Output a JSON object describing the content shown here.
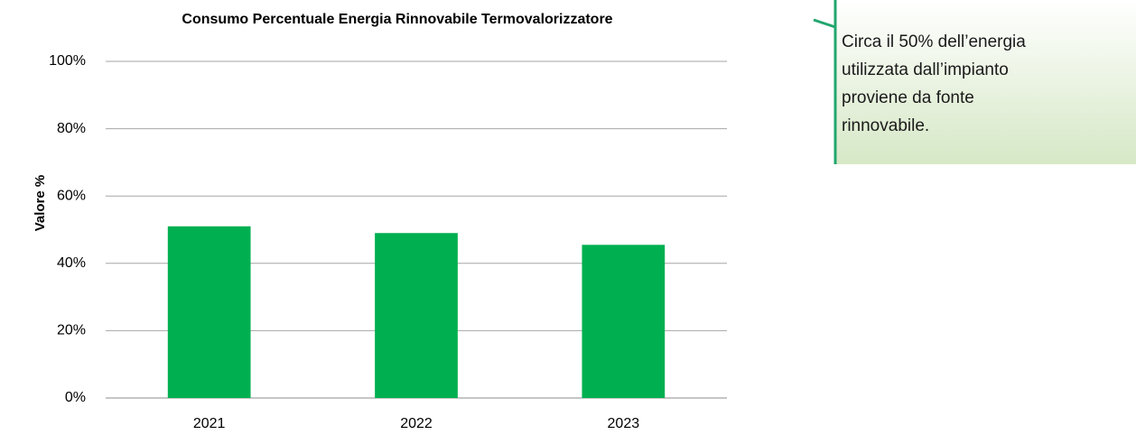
{
  "chart_data": {
    "type": "bar",
    "title": "Consumo Percentuale Energia Rinnovabile Termovalorizzatore",
    "y_label": "Valore %",
    "categories": [
      "2021",
      "2022",
      "2023"
    ],
    "values": [
      51,
      49,
      45.5
    ],
    "color": "#00b050",
    "ylim": [
      0,
      100
    ],
    "yticks": [
      {
        "value": 0,
        "label": "0%"
      },
      {
        "value": 20,
        "label": "20%"
      },
      {
        "value": 40,
        "label": "40%"
      },
      {
        "value": 60,
        "label": "60%"
      },
      {
        "value": 80,
        "label": "80%"
      },
      {
        "value": 100,
        "label": "100%"
      }
    ],
    "grid": true
  },
  "callout": {
    "lines": [
      "Circa il 50% dell’energia",
      "utilizzata dall’impianto",
      "proviene da fonte",
      "rinnovabile."
    ]
  }
}
